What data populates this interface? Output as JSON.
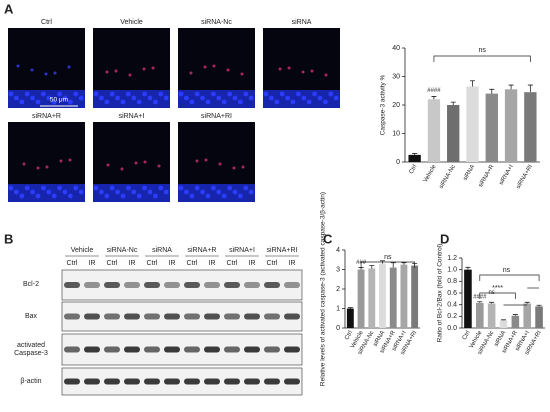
{
  "panels": {
    "a": "A",
    "b": "B",
    "c": "C",
    "d": "D"
  },
  "images": {
    "labels": [
      "Ctrl",
      "Vehicle",
      "siRNA-Nc",
      "siRNA",
      "siRNA+R",
      "siRNA+I",
      "siRNA+RI"
    ],
    "scale_bar": "50 μm"
  },
  "blot": {
    "groups": [
      "Vehicle",
      "siRNA-Nc",
      "siRNA",
      "siRNA+R",
      "siRNA+I",
      "siRNA+RI"
    ],
    "conditions": [
      "Ctrl",
      "IR"
    ],
    "rows": [
      "Bcl-2",
      "Bax",
      "activated Caspase-3",
      "β-actin"
    ]
  },
  "chart_data": [
    {
      "type": "bar",
      "y_label": "Caspase-3 activity %",
      "categories": [
        "Ctrl",
        "Vehicle",
        "siRNA-Nc",
        "siRNA",
        "siRNA+R",
        "siRNA+I",
        "siRNA+RI"
      ],
      "values": [
        2.5,
        22,
        20,
        26.5,
        24,
        25.5,
        24.5
      ],
      "errors": [
        0.5,
        1,
        1,
        2,
        1.5,
        1.5,
        2.5
      ],
      "colors": [
        "#111111",
        "#c8c8c8",
        "#6e6e6e",
        "#dcdcdc",
        "#8a8a8a",
        "#a6a6a6",
        "#7a7a7a"
      ],
      "ylim": [
        0,
        40
      ],
      "yticks": [
        0,
        10,
        20,
        30,
        40
      ],
      "annotations": [
        "####",
        "ns"
      ]
    },
    {
      "type": "bar",
      "y_label": "Relative levels of activated caspase-3 (activated caspase-3/β-actin)",
      "categories": [
        "Ctrl",
        "Vehicle",
        "siRNA-Nc",
        "siRNA",
        "siRNA+R",
        "siRNA+I",
        "siRNA+RI"
      ],
      "values": [
        1.0,
        3.0,
        3.05,
        3.3,
        3.1,
        3.25,
        3.2
      ],
      "errors": [
        0.05,
        0.1,
        0.15,
        0.15,
        0.25,
        0.1,
        0.1
      ],
      "colors": [
        "#111111",
        "#9a9a9a",
        "#b4b4b4",
        "#dcdcdc",
        "#8a8a8a",
        "#a6a6a6",
        "#7a7a7a"
      ],
      "ylim": [
        0,
        4
      ],
      "yticks": [
        0,
        1,
        2,
        3,
        4
      ],
      "annotations": [
        "###",
        "ns"
      ]
    },
    {
      "type": "bar",
      "y_label": "Ratio of Bcl-2/Bax (fold of Control)",
      "categories": [
        "Ctrl",
        "Vehicle",
        "siRNA-Nc",
        "siRNA",
        "siRNA+R",
        "siRNA+I",
        "siRNA+RI"
      ],
      "values": [
        1.0,
        0.43,
        0.42,
        0.13,
        0.21,
        0.42,
        0.37
      ],
      "errors": [
        0.04,
        0.02,
        0.02,
        0.01,
        0.02,
        0.02,
        0.02
      ],
      "colors": [
        "#111111",
        "#9a9a9a",
        "#b4b4b4",
        "#dcdcdc",
        "#8a8a8a",
        "#a6a6a6",
        "#7a7a7a"
      ],
      "ylim": [
        0,
        1.2
      ],
      "yticks": [
        {
          "value": 0,
          "label": "0.0"
        },
        0.2,
        0.4,
        0.6,
        0.8,
        {
          "value": 1,
          "label": "1.0"
        },
        1.2
      ],
      "annotations": [
        "####",
        "ns",
        "****",
        "ns"
      ]
    }
  ]
}
